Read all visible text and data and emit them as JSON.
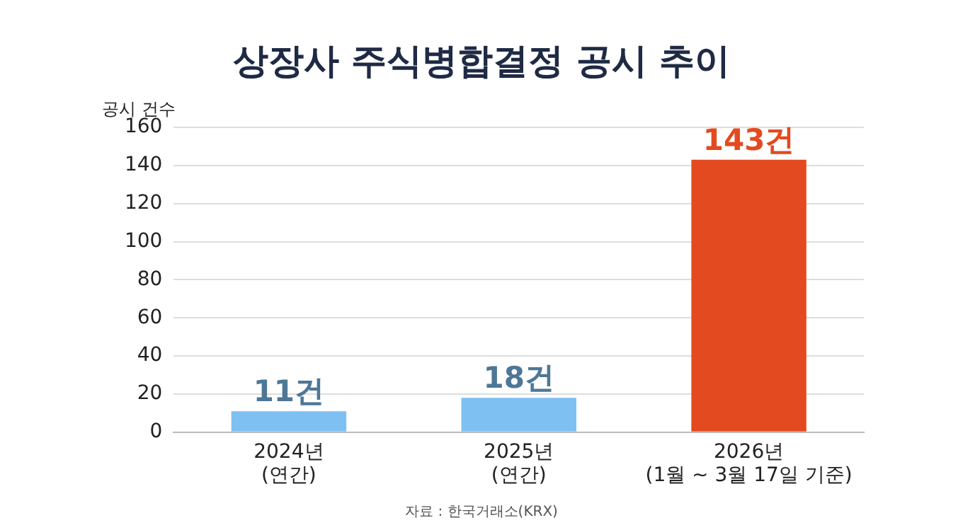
{
  "chart_data": {
    "type": "bar",
    "title": "상장사 주식병합결정 공시 추이",
    "ylabel": "공시 건수",
    "categories": [
      "2024년\n(연간)",
      "2025년\n(연간)",
      "2026년\n(1월 ~ 3월 17일 기준)"
    ],
    "values": [
      11,
      18,
      143
    ],
    "colors": [
      "#7ec0f2",
      "#7ec0f2",
      "#e34a1f"
    ],
    "value_labels": [
      "11건",
      "18건",
      "143건"
    ],
    "ylim": [
      0,
      160
    ],
    "yticks": [
      0,
      20,
      40,
      60,
      80,
      100,
      120,
      140,
      160
    ],
    "grid": "y",
    "annotations": [
      "자료 : 한국거래소(KRX)"
    ]
  }
}
